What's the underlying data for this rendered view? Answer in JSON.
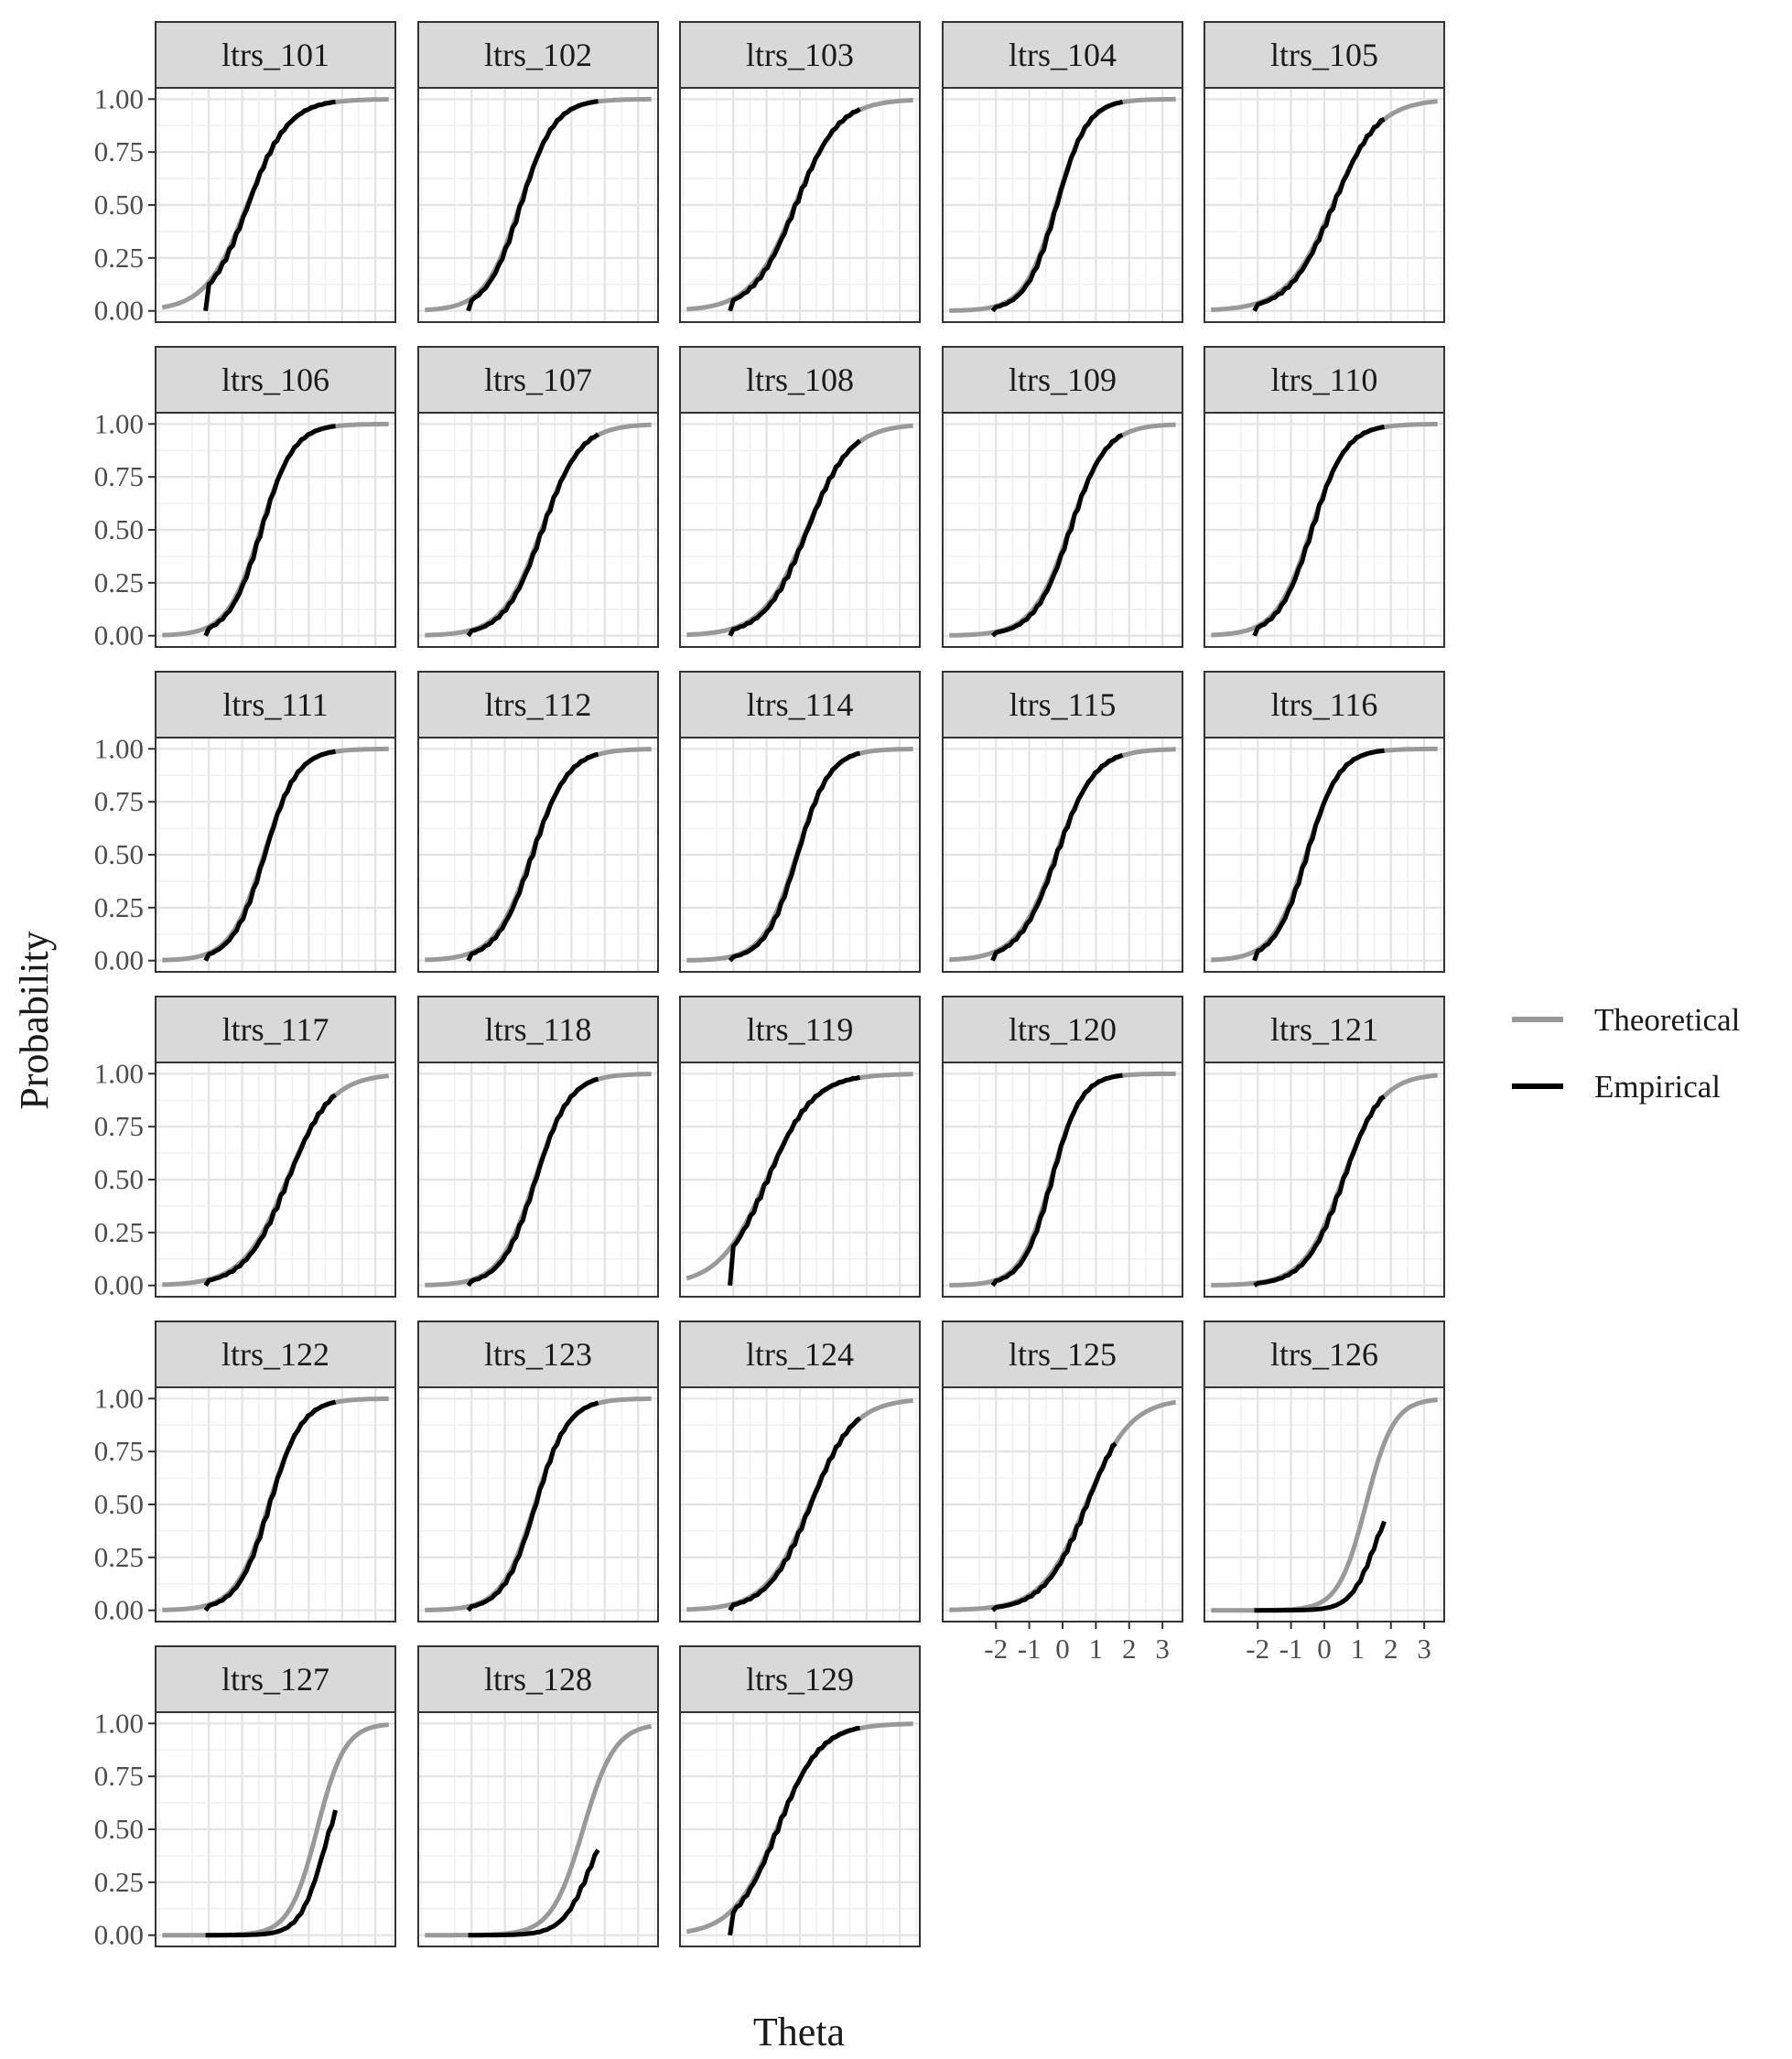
{
  "chart_data": {
    "type": "line",
    "xlabel": "Theta",
    "ylabel": "Probability",
    "xlim": [
      -3.6,
      3.6
    ],
    "ylim": [
      0,
      1
    ],
    "x_ticks": [
      -2,
      -1,
      0,
      1,
      2,
      3
    ],
    "x_tick_labels": [
      "-2",
      "-1",
      "0",
      "1",
      "2",
      "3"
    ],
    "y_ticks": [
      0,
      0.25,
      0.5,
      0.75,
      1
    ],
    "y_tick_labels": [
      "0.00",
      "0.25",
      "0.50",
      "0.75",
      "1.00"
    ],
    "grid": true,
    "legend_position": "right",
    "legend": [
      {
        "name": "Theoretical",
        "color": "#999999"
      },
      {
        "name": "Empirical",
        "color": "#000000"
      }
    ],
    "empirical_range": [
      -2.1,
      1.8
    ],
    "panels": [
      {
        "label": "ltrs_101",
        "a": 1.6,
        "b": -0.85,
        "empirical_start": -2.1
      },
      {
        "label": "ltrs_102",
        "a": 1.9,
        "b": -0.55
      },
      {
        "label": "ltrs_103",
        "a": 1.5,
        "b": -0.15
      },
      {
        "label": "ltrs_104",
        "a": 2.1,
        "b": -0.2
      },
      {
        "label": "ltrs_105",
        "a": 1.45,
        "b": 0.25
      },
      {
        "label": "ltrs_106",
        "a": 2.0,
        "b": -0.45
      },
      {
        "label": "ltrs_107",
        "a": 1.7,
        "b": 0.1
      },
      {
        "label": "ltrs_108",
        "a": 1.5,
        "b": 0.2
      },
      {
        "label": "ltrs_109",
        "a": 1.8,
        "b": 0.2
      },
      {
        "label": "ltrs_110",
        "a": 1.9,
        "b": -0.4
      },
      {
        "label": "ltrs_111",
        "a": 2.0,
        "b": -0.35
      },
      {
        "label": "ltrs_112",
        "a": 1.8,
        "b": -0.2
      },
      {
        "label": "ltrs_114",
        "a": 2.0,
        "b": -0.1
      },
      {
        "label": "ltrs_115",
        "a": 1.7,
        "b": -0.2
      },
      {
        "label": "ltrs_116",
        "a": 2.0,
        "b": -0.55
      },
      {
        "label": "ltrs_117",
        "a": 1.5,
        "b": 0.35
      },
      {
        "label": "ltrs_118",
        "a": 1.9,
        "b": -0.1
      },
      {
        "label": "ltrs_119",
        "a": 1.4,
        "b": -1.0,
        "empirical_start": -2.1
      },
      {
        "label": "ltrs_120",
        "a": 2.2,
        "b": -0.35
      },
      {
        "label": "ltrs_121",
        "a": 1.7,
        "b": 0.55
      },
      {
        "label": "ltrs_122",
        "a": 2.0,
        "b": -0.2
      },
      {
        "label": "ltrs_123",
        "a": 2.0,
        "b": -0.1
      },
      {
        "label": "ltrs_124",
        "a": 1.5,
        "b": 0.3
      },
      {
        "label": "ltrs_125",
        "a": 1.5,
        "b": 0.7,
        "empirical_end": 1.6
      },
      {
        "label": "ltrs_126",
        "a": 2.4,
        "b": 1.25,
        "empirical_scale": 0.6,
        "empirical_shift": 0.25
      },
      {
        "label": "ltrs_127",
        "a": 2.4,
        "b": 1.25,
        "empirical_scale": 0.8,
        "empirical_shift": 0.2
      },
      {
        "label": "ltrs_128",
        "a": 2.1,
        "b": 1.35,
        "empirical_scale": 0.63,
        "empirical_shift": 0.2
      },
      {
        "label": "ltrs_129",
        "a": 1.5,
        "b": -0.7,
        "empirical_start": -2.1
      }
    ]
  }
}
